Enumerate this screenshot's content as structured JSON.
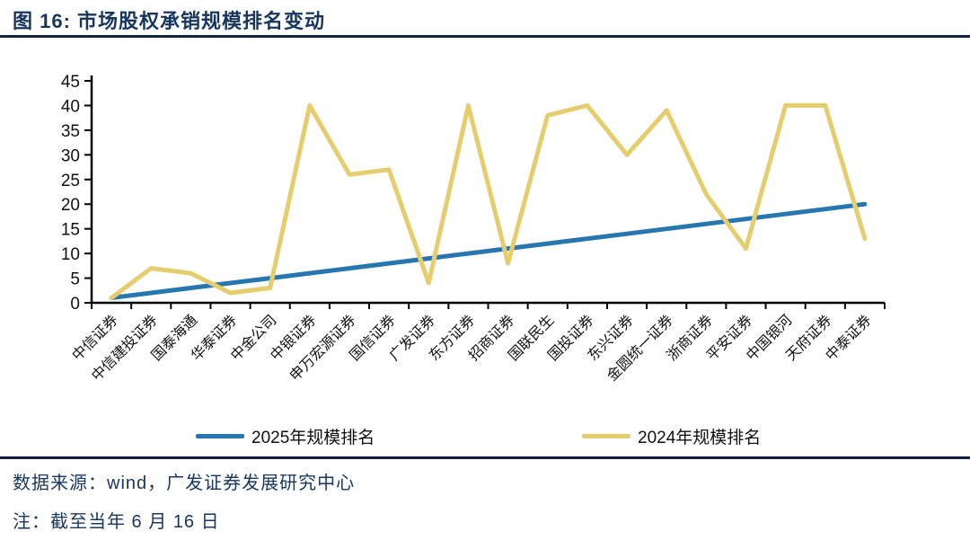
{
  "header": {
    "title": "图 16: 市场股权承销规模排名变动"
  },
  "colors": {
    "navy": "#17365d",
    "blue_series": "#2776b0",
    "yellow_series": "#e5cd6e",
    "axis": "#000000",
    "tick_text": "#111111"
  },
  "legend": {
    "items": [
      {
        "label": "2025年规模排名",
        "color": "#2776b0"
      },
      {
        "label": "2024年规模排名",
        "color": "#e5cd6e"
      }
    ]
  },
  "footer": {
    "source": "数据来源：wind，广发证券发展研究中心",
    "note": "注：截至当年 6 月 16 日"
  },
  "chart_data": {
    "type": "line",
    "title": "市场股权承销规模排名变动",
    "categories": [
      "中信证券",
      "中信建投证券",
      "国泰海通",
      "华泰证券",
      "中金公司",
      "中银证券",
      "申万宏源证券",
      "国信证券",
      "广发证券",
      "东方证券",
      "招商证券",
      "国联民生",
      "国投证券",
      "东兴证券",
      "金圆统一证券",
      "浙商证券",
      "平安证券",
      "中国银河",
      "天府证券",
      "中泰证券"
    ],
    "series": [
      {
        "name": "2025年规模排名",
        "color": "#2776b0",
        "values": [
          1,
          2,
          3,
          4,
          5,
          6,
          7,
          8,
          9,
          10,
          11,
          12,
          13,
          14,
          15,
          16,
          17,
          18,
          19,
          20
        ]
      },
      {
        "name": "2024年规模排名",
        "color": "#e5cd6e",
        "values": [
          1,
          7,
          6,
          2,
          3,
          40,
          26,
          27,
          4,
          40,
          8,
          38,
          40,
          30,
          39,
          22,
          11,
          40,
          40,
          13
        ]
      }
    ],
    "xlabel": "",
    "ylabel": "",
    "ylim": [
      0,
      45
    ],
    "yticks": [
      0,
      5,
      10,
      15,
      20,
      25,
      30,
      35,
      40,
      45
    ],
    "grid": false,
    "legend_position": "bottom",
    "x_label_rotation_deg": 45
  }
}
